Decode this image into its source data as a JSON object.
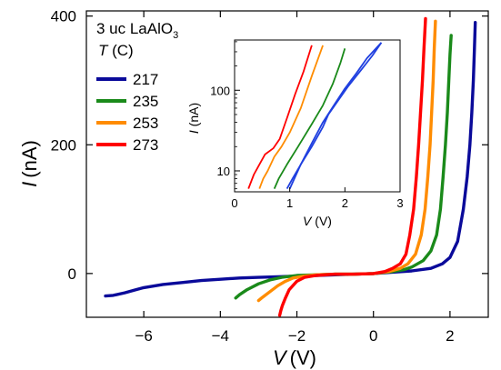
{
  "chart_data": [
    {
      "type": "line",
      "panel": "main",
      "xlabel": {
        "var": "V",
        "unit": "(V)"
      },
      "ylabel": {
        "var": "I",
        "unit": "(nA)"
      },
      "xlim": [
        -7.5,
        3.0
      ],
      "ylim": [
        -68,
        408
      ],
      "xticks": [
        -6,
        -4,
        -2,
        0,
        2
      ],
      "yticks": [
        0,
        200,
        400
      ],
      "legend": {
        "title_line1_prefix": "3 uc LaAlO",
        "title_line1_sub": "3",
        "title_line2_var": "T",
        "title_line2_unit": " (C)",
        "placement": "top-left"
      },
      "series": [
        {
          "name": "217",
          "color": "#0a0a9a",
          "points": [
            [
              -7.0,
              -35
            ],
            [
              -6.8,
              -34
            ],
            [
              -6.5,
              -30
            ],
            [
              -6.2,
              -25
            ],
            [
              -6.0,
              -22
            ],
            [
              -5.5,
              -17
            ],
            [
              -5.0,
              -14
            ],
            [
              -4.5,
              -11
            ],
            [
              -4.0,
              -9
            ],
            [
              -3.5,
              -7
            ],
            [
              -3.0,
              -6
            ],
            [
              -2.5,
              -5
            ],
            [
              -2.0,
              -4
            ],
            [
              -1.5,
              -3
            ],
            [
              -1.0,
              -2
            ],
            [
              -0.5,
              -1
            ],
            [
              0.0,
              0
            ],
            [
              0.5,
              2
            ],
            [
              1.0,
              4
            ],
            [
              1.5,
              8
            ],
            [
              1.8,
              15
            ],
            [
              2.0,
              25
            ],
            [
              2.2,
              50
            ],
            [
              2.35,
              100
            ],
            [
              2.45,
              150
            ],
            [
              2.52,
              200
            ],
            [
              2.57,
              250
            ],
            [
              2.61,
              300
            ],
            [
              2.64,
              350
            ],
            [
              2.66,
              390
            ]
          ]
        },
        {
          "name": "235",
          "color": "#1a8a1a",
          "points": [
            [
              -3.6,
              -38
            ],
            [
              -3.5,
              -33
            ],
            [
              -3.3,
              -25
            ],
            [
              -3.0,
              -16
            ],
            [
              -2.7,
              -10
            ],
            [
              -2.4,
              -6
            ],
            [
              -2.0,
              -3
            ],
            [
              -1.5,
              -2
            ],
            [
              -1.0,
              -1
            ],
            [
              -0.5,
              -1
            ],
            [
              0.0,
              0
            ],
            [
              0.5,
              3
            ],
            [
              0.8,
              6
            ],
            [
              1.0,
              10
            ],
            [
              1.3,
              20
            ],
            [
              1.5,
              35
            ],
            [
              1.65,
              60
            ],
            [
              1.75,
              100
            ],
            [
              1.82,
              150
            ],
            [
              1.88,
              200
            ],
            [
              1.93,
              250
            ],
            [
              1.97,
              300
            ],
            [
              2.0,
              340
            ],
            [
              2.03,
              370
            ]
          ]
        },
        {
          "name": "253",
          "color": "#ff8c00",
          "points": [
            [
              -3.0,
              -42
            ],
            [
              -2.9,
              -37
            ],
            [
              -2.7,
              -28
            ],
            [
              -2.5,
              -19
            ],
            [
              -2.3,
              -12
            ],
            [
              -2.1,
              -7
            ],
            [
              -1.8,
              -4
            ],
            [
              -1.5,
              -2
            ],
            [
              -1.0,
              -1
            ],
            [
              -0.5,
              -1
            ],
            [
              0.0,
              0
            ],
            [
              0.4,
              3
            ],
            [
              0.7,
              8
            ],
            [
              0.9,
              15
            ],
            [
              1.1,
              30
            ],
            [
              1.25,
              60
            ],
            [
              1.35,
              100
            ],
            [
              1.42,
              150
            ],
            [
              1.48,
              200
            ],
            [
              1.52,
              250
            ],
            [
              1.56,
              300
            ],
            [
              1.59,
              350
            ],
            [
              1.62,
              392
            ]
          ]
        },
        {
          "name": "273",
          "color": "#ff0000",
          "points": [
            [
              -2.45,
              -65
            ],
            [
              -2.42,
              -58
            ],
            [
              -2.38,
              -50
            ],
            [
              -2.3,
              -38
            ],
            [
              -2.2,
              -25
            ],
            [
              -2.0,
              -12
            ],
            [
              -1.8,
              -6
            ],
            [
              -1.5,
              -3
            ],
            [
              -1.0,
              -1
            ],
            [
              -0.5,
              -1
            ],
            [
              0.0,
              0
            ],
            [
              0.3,
              3
            ],
            [
              0.5,
              8
            ],
            [
              0.7,
              15
            ],
            [
              0.85,
              30
            ],
            [
              0.95,
              60
            ],
            [
              1.05,
              100
            ],
            [
              1.12,
              150
            ],
            [
              1.18,
              200
            ],
            [
              1.23,
              250
            ],
            [
              1.28,
              300
            ],
            [
              1.32,
              350
            ],
            [
              1.36,
              396
            ]
          ]
        }
      ]
    },
    {
      "type": "line",
      "panel": "inset",
      "yscale": "log",
      "xlabel": {
        "var": "V",
        "unit": " (V)"
      },
      "ylabel": {
        "var": "I",
        "unit": " (nA)"
      },
      "xlim": [
        0,
        3
      ],
      "ylim": [
        5.5,
        420
      ],
      "xticks": [
        0,
        1,
        2,
        3
      ],
      "yticks": [
        10,
        100
      ],
      "series": [
        {
          "name": "217",
          "color": "#2040e0",
          "points": [
            [
              0.95,
              6
            ],
            [
              1.05,
              8
            ],
            [
              1.2,
              12
            ],
            [
              1.4,
              20
            ],
            [
              1.6,
              35
            ],
            [
              1.7,
              50
            ],
            [
              1.85,
              70
            ],
            [
              2.05,
              110
            ],
            [
              2.3,
              180
            ],
            [
              2.5,
              270
            ],
            [
              2.66,
              390
            ]
          ],
          "return_points": [
            [
              2.66,
              390
            ],
            [
              2.4,
              250
            ],
            [
              2.2,
              160
            ],
            [
              2.0,
              105
            ],
            [
              1.8,
              65
            ],
            [
              1.6,
              40
            ],
            [
              1.4,
              22
            ],
            [
              1.2,
              12
            ],
            [
              1.0,
              6
            ]
          ]
        },
        {
          "name": "235",
          "color": "#1a8a1a",
          "points": [
            [
              0.72,
              6
            ],
            [
              0.8,
              8
            ],
            [
              0.95,
              12
            ],
            [
              1.15,
              20
            ],
            [
              1.4,
              38
            ],
            [
              1.6,
              65
            ],
            [
              1.78,
              120
            ],
            [
              1.92,
              220
            ],
            [
              2.0,
              330
            ]
          ]
        },
        {
          "name": "253",
          "color": "#ff8c00",
          "points": [
            [
              0.45,
              6
            ],
            [
              0.52,
              8
            ],
            [
              0.6,
              10
            ],
            [
              0.72,
              15
            ],
            [
              0.85,
              20
            ],
            [
              1.0,
              30
            ],
            [
              1.2,
              60
            ],
            [
              1.4,
              150
            ],
            [
              1.6,
              360
            ]
          ]
        },
        {
          "name": "273",
          "color": "#ff0000",
          "points": [
            [
              0.25,
              6
            ],
            [
              0.35,
              9
            ],
            [
              0.45,
              12
            ],
            [
              0.55,
              16
            ],
            [
              0.7,
              19
            ],
            [
              0.82,
              25
            ],
            [
              0.95,
              45
            ],
            [
              1.1,
              90
            ],
            [
              1.25,
              170
            ],
            [
              1.4,
              360
            ]
          ]
        }
      ]
    }
  ]
}
